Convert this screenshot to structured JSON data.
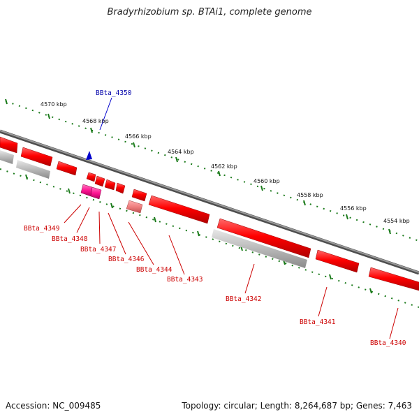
{
  "title": "Bradyrhizobium sp. BTAi1, complete genome",
  "footer": {
    "accession": "Accession: NC_009485",
    "topology": "Topology: circular; Length: 8,264,687 bp; Genes: 7,463"
  },
  "colors": {
    "backbone": "#7a7a7a",
    "tick_green": "#1a7a1a",
    "gene_red": "#ff0000",
    "gene_magenta": "#ff1493",
    "gene_pink": "#f08080",
    "gene_grey": "#b9b9b9",
    "gene_blue": "#0000cc",
    "label_red": "#cc0000",
    "label_blue": "#0000aa"
  },
  "kbp_labels": [
    "4570 kbp",
    "4568 kbp",
    "4566 kbp",
    "4564 kbp",
    "4562 kbp",
    "4560 kbp",
    "4558 kbp",
    "4556 kbp",
    "4554 kbp"
  ],
  "genes": [
    {
      "id": "BBta_4350",
      "strand": "forward",
      "color": "blue"
    },
    {
      "id": "BBta_4349",
      "strand": "reverse",
      "color": "red"
    },
    {
      "id": "BBta_4348",
      "strand": "reverse",
      "color": "magenta"
    },
    {
      "id": "BBta_4347",
      "strand": "reverse",
      "color": "red"
    },
    {
      "id": "BBta_4346",
      "strand": "reverse",
      "color": "red"
    },
    {
      "id": "BBta_4344",
      "strand": "reverse",
      "color": "pink"
    },
    {
      "id": "BBta_4343",
      "strand": "reverse",
      "color": "red"
    },
    {
      "id": "BBta_4342",
      "strand": "reverse",
      "color": "red"
    },
    {
      "id": "BBta_4341",
      "strand": "reverse",
      "color": "red"
    },
    {
      "id": "BBta_4340",
      "strand": "reverse",
      "color": "red"
    }
  ]
}
